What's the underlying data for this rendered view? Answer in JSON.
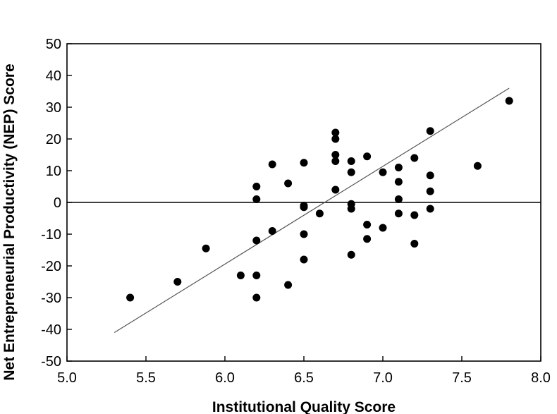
{
  "chart_data": {
    "type": "scatter",
    "title": "",
    "xlabel": "Institutional Quality Score",
    "ylabel": "Net Entrepreneurial Productivity (NEP) Score",
    "xlim": [
      5.0,
      8.0
    ],
    "ylim": [
      -50,
      50
    ],
    "x_ticks": [
      "5.0",
      "5.5",
      "6.0",
      "6.5",
      "7.0",
      "7.5",
      "8.0"
    ],
    "y_ticks": [
      "50",
      "40",
      "30",
      "20",
      "10",
      "0",
      "-10",
      "-20",
      "-30",
      "-40",
      "-50"
    ],
    "grid": false,
    "legend": "none",
    "reference_line_y": 0,
    "trend_line": {
      "x": [
        5.3,
        7.8
      ],
      "y": [
        -41,
        36
      ]
    },
    "colors": {
      "points": "#000000",
      "axes": "#000000",
      "trend_line": "#555555"
    },
    "points": [
      {
        "x": 5.4,
        "y": -30
      },
      {
        "x": 5.7,
        "y": -25
      },
      {
        "x": 5.88,
        "y": -14.5
      },
      {
        "x": 6.1,
        "y": -23
      },
      {
        "x": 6.2,
        "y": -12
      },
      {
        "x": 6.2,
        "y": -23
      },
      {
        "x": 6.2,
        "y": -30
      },
      {
        "x": 6.2,
        "y": 1
      },
      {
        "x": 6.2,
        "y": 5
      },
      {
        "x": 6.3,
        "y": 12
      },
      {
        "x": 6.3,
        "y": -9
      },
      {
        "x": 6.4,
        "y": 6
      },
      {
        "x": 6.4,
        "y": -26
      },
      {
        "x": 6.5,
        "y": 12.5
      },
      {
        "x": 6.5,
        "y": -1
      },
      {
        "x": 6.5,
        "y": -1.5
      },
      {
        "x": 6.5,
        "y": -10
      },
      {
        "x": 6.5,
        "y": -18
      },
      {
        "x": 6.6,
        "y": -3.5
      },
      {
        "x": 6.7,
        "y": 22
      },
      {
        "x": 6.7,
        "y": 20
      },
      {
        "x": 6.7,
        "y": 15
      },
      {
        "x": 6.7,
        "y": 13
      },
      {
        "x": 6.7,
        "y": 4
      },
      {
        "x": 6.8,
        "y": 13
      },
      {
        "x": 6.8,
        "y": 9.5
      },
      {
        "x": 6.8,
        "y": -0.5
      },
      {
        "x": 6.8,
        "y": -2
      },
      {
        "x": 6.8,
        "y": -16.5
      },
      {
        "x": 6.9,
        "y": 14.5
      },
      {
        "x": 6.9,
        "y": -7
      },
      {
        "x": 6.9,
        "y": -11.5
      },
      {
        "x": 7.0,
        "y": 9.5
      },
      {
        "x": 7.0,
        "y": -8
      },
      {
        "x": 7.1,
        "y": 11
      },
      {
        "x": 7.1,
        "y": 6.5
      },
      {
        "x": 7.1,
        "y": 1
      },
      {
        "x": 7.1,
        "y": -3.5
      },
      {
        "x": 7.2,
        "y": 14
      },
      {
        "x": 7.2,
        "y": -4
      },
      {
        "x": 7.2,
        "y": -13
      },
      {
        "x": 7.3,
        "y": 22.5
      },
      {
        "x": 7.3,
        "y": 8.5
      },
      {
        "x": 7.3,
        "y": 3.5
      },
      {
        "x": 7.3,
        "y": -2
      },
      {
        "x": 7.6,
        "y": 11.5
      },
      {
        "x": 7.8,
        "y": 32
      }
    ]
  }
}
